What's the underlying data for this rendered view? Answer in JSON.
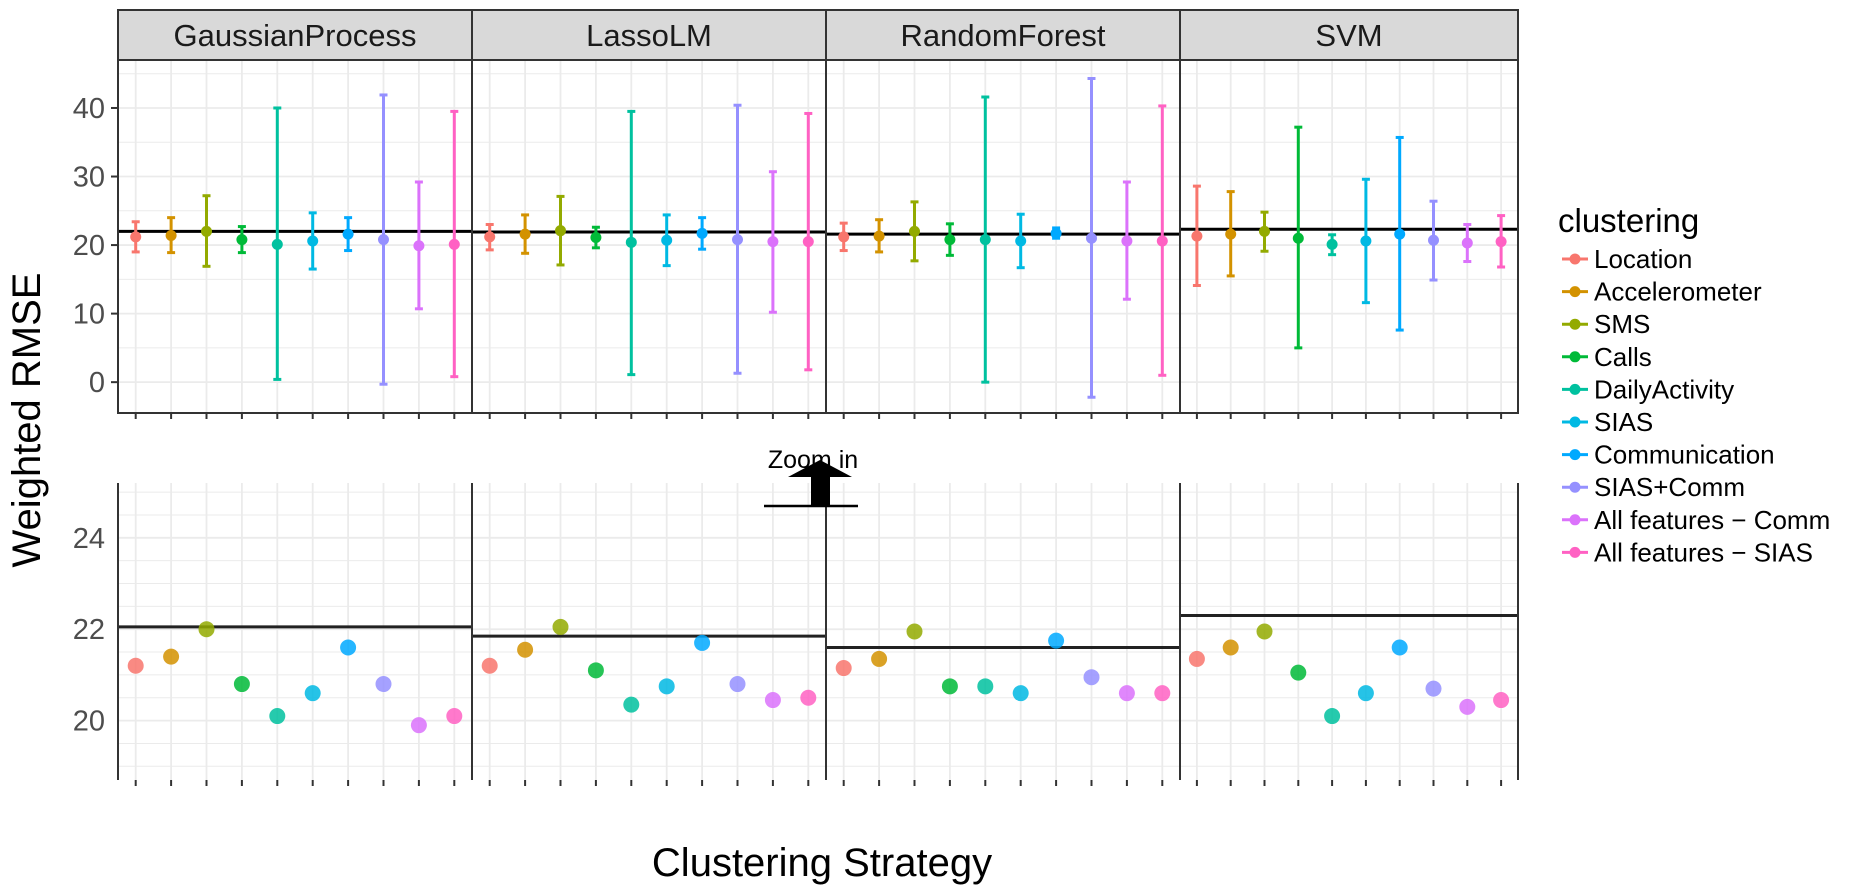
{
  "chart_data": {
    "type": "scatter",
    "panels": [
      "GaussianProcess",
      "LassoLM",
      "RandomForest",
      "SVM"
    ],
    "ylabel": "Weighted RMSE",
    "xlabel": "Clustering Strategy",
    "legend_title": "clustering",
    "legend_position": "right",
    "grid": true,
    "zoom_label": "Zoom in",
    "series": [
      {
        "name": "Location",
        "color": "#F8766D"
      },
      {
        "name": "Accelerometer",
        "color": "#D39200"
      },
      {
        "name": "SMS",
        "color": "#93AA00"
      },
      {
        "name": "Calls",
        "color": "#00BA38"
      },
      {
        "name": "DailyActivity",
        "color": "#00C19F"
      },
      {
        "name": "SIAS",
        "color": "#00B9E3"
      },
      {
        "name": "Communication",
        "color": "#00A9FF"
      },
      {
        "name": "SIAS+Comm",
        "color": "#9590FF"
      },
      {
        "name": "All features − Comm",
        "color": "#DB72FB"
      },
      {
        "name": "All features − SIAS",
        "color": "#FF61C3"
      }
    ],
    "top": {
      "ylim": [
        -4.5,
        47
      ],
      "yticks": [
        "0",
        "10",
        "20",
        "30",
        "40"
      ],
      "baseline": [
        22.0,
        21.9,
        21.6,
        22.3
      ],
      "points": [
        [
          [
            21.2,
            19.0,
            23.4
          ],
          [
            21.4,
            18.9,
            24.0
          ],
          [
            22.0,
            16.9,
            27.2
          ],
          [
            20.8,
            18.9,
            22.7
          ],
          [
            20.1,
            0.4,
            40.0
          ],
          [
            20.6,
            16.5,
            24.7
          ],
          [
            21.6,
            19.2,
            24.0
          ],
          [
            20.8,
            -0.3,
            41.9
          ],
          [
            19.9,
            10.7,
            29.2
          ],
          [
            20.1,
            0.8,
            39.5
          ]
        ],
        [
          [
            21.2,
            19.3,
            23.0
          ],
          [
            21.6,
            18.8,
            24.4
          ],
          [
            22.1,
            17.1,
            27.1
          ],
          [
            21.1,
            19.6,
            22.6
          ],
          [
            20.4,
            1.1,
            39.5
          ],
          [
            20.7,
            17.0,
            24.4
          ],
          [
            21.7,
            19.4,
            24.0
          ],
          [
            20.8,
            1.3,
            40.4
          ],
          [
            20.5,
            10.2,
            30.7
          ],
          [
            20.5,
            1.8,
            39.2
          ]
        ],
        [
          [
            21.2,
            19.2,
            23.2
          ],
          [
            21.3,
            19.0,
            23.7
          ],
          [
            22.0,
            17.7,
            26.3
          ],
          [
            20.8,
            18.5,
            23.1
          ],
          [
            20.8,
            0.0,
            41.6
          ],
          [
            20.6,
            16.7,
            24.5
          ],
          [
            21.7,
            21.0,
            22.5
          ],
          [
            21.0,
            -2.2,
            44.3
          ],
          [
            20.6,
            12.1,
            29.2
          ],
          [
            20.6,
            1.0,
            40.3
          ]
        ],
        [
          [
            21.3,
            14.1,
            28.6
          ],
          [
            21.6,
            15.5,
            27.8
          ],
          [
            22.0,
            19.1,
            24.8
          ],
          [
            21.0,
            5.0,
            37.2
          ],
          [
            20.1,
            18.6,
            21.5
          ],
          [
            20.6,
            11.6,
            29.6
          ],
          [
            21.6,
            7.6,
            35.7
          ],
          [
            20.7,
            14.9,
            26.4
          ],
          [
            20.3,
            17.6,
            23.0
          ],
          [
            20.5,
            16.8,
            24.3
          ]
        ]
      ]
    },
    "bottom": {
      "ylim": [
        18.7,
        25.2
      ],
      "yticks": [
        "20",
        "22",
        "24"
      ],
      "baseline": [
        22.05,
        21.85,
        21.6,
        22.3
      ],
      "points": [
        [
          21.2,
          21.4,
          22.0,
          20.8,
          20.1,
          20.6,
          21.6,
          20.8,
          19.9,
          20.1
        ],
        [
          21.2,
          21.55,
          22.05,
          21.1,
          20.35,
          20.75,
          21.7,
          20.8,
          20.45,
          20.5
        ],
        [
          21.15,
          21.35,
          21.95,
          20.75,
          20.75,
          20.6,
          21.75,
          20.95,
          20.6,
          20.6
        ],
        [
          21.35,
          21.6,
          21.95,
          21.05,
          20.1,
          20.6,
          21.6,
          20.7,
          20.3,
          20.45
        ]
      ]
    }
  }
}
